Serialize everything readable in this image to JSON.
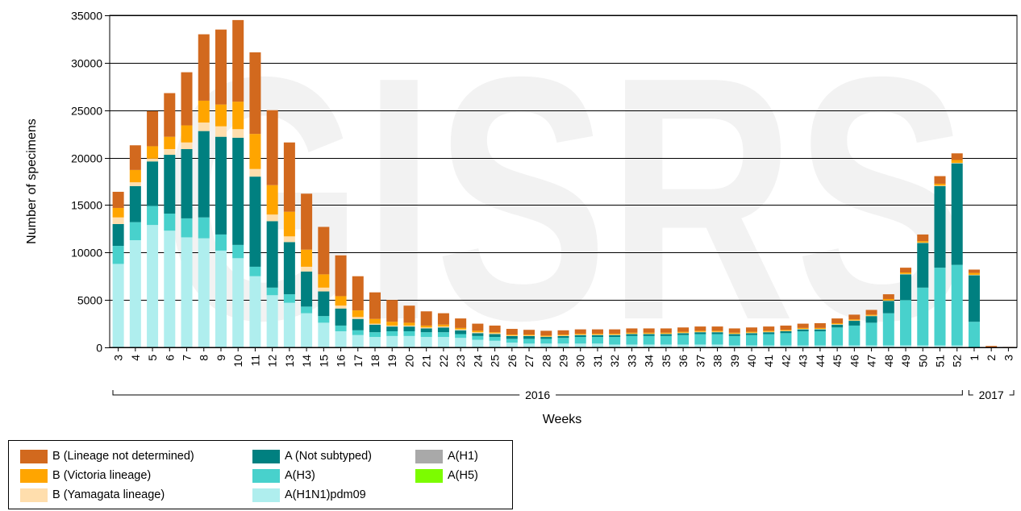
{
  "colors": {
    "b_lnd": "#d2691e",
    "b_vic": "#ffa500",
    "b_yam": "#ffdead",
    "a_ns": "#008080",
    "a_h3": "#48d1cc",
    "a_h1n1": "#afeeee",
    "a_h1": "#a9a9a9",
    "a_h5": "#7cfc00",
    "grid": "#000000"
  },
  "chart_data": {
    "type": "bar",
    "stacked": true,
    "title": "",
    "xlabel": "Weeks",
    "ylabel": "Number of specimens",
    "ylim": [
      0,
      35000
    ],
    "yticks": [
      0,
      5000,
      10000,
      15000,
      20000,
      25000,
      30000,
      35000
    ],
    "grid": "horizontal",
    "watermark": "GISRS",
    "categories": [
      "3",
      "4",
      "5",
      "6",
      "7",
      "8",
      "9",
      "10",
      "11",
      "12",
      "13",
      "14",
      "15",
      "16",
      "17",
      "18",
      "19",
      "20",
      "21",
      "22",
      "23",
      "24",
      "25",
      "26",
      "27",
      "28",
      "29",
      "30",
      "31",
      "32",
      "33",
      "34",
      "35",
      "36",
      "37",
      "38",
      "39",
      "40",
      "41",
      "42",
      "43",
      "44",
      "45",
      "46",
      "47",
      "48",
      "49",
      "50",
      "51",
      "52",
      "1",
      "2",
      "3"
    ],
    "year_groups": [
      {
        "label": "2016",
        "start": 0,
        "end": 49
      },
      {
        "label": "2017",
        "start": 50,
        "end": 52
      }
    ],
    "series": [
      {
        "name": "A(H1N1)pdm09",
        "color_key": "a_h1n1",
        "values": [
          8800,
          11300,
          12900,
          12300,
          11600,
          11500,
          10200,
          9400,
          7500,
          5500,
          4700,
          3600,
          2600,
          1700,
          1300,
          1100,
          1200,
          1200,
          1100,
          1100,
          1000,
          800,
          700,
          500,
          400,
          400,
          400,
          400,
          400,
          300,
          300,
          300,
          300,
          300,
          300,
          300,
          200,
          200,
          200,
          200,
          200,
          200,
          200,
          200,
          200,
          200,
          200,
          200,
          200,
          200,
          0,
          0,
          0
        ]
      },
      {
        "name": "A(H3)",
        "color_key": "a_h3",
        "values": [
          1900,
          1900,
          2000,
          1800,
          2000,
          2200,
          1700,
          1400,
          1000,
          800,
          900,
          700,
          700,
          600,
          500,
          500,
          500,
          500,
          500,
          500,
          400,
          400,
          400,
          400,
          500,
          500,
          600,
          700,
          700,
          800,
          900,
          900,
          900,
          1000,
          1100,
          1100,
          1000,
          1100,
          1200,
          1300,
          1500,
          1500,
          1900,
          2100,
          2400,
          3400,
          4800,
          6100,
          8200,
          8500,
          2700,
          0,
          0
        ]
      },
      {
        "name": "A(Not subtyped)",
        "color_key": "a_ns",
        "values": [
          2300,
          3800,
          4700,
          6200,
          7300,
          9100,
          10300,
          11300,
          9500,
          7000,
          5500,
          3700,
          2600,
          1800,
          1200,
          800,
          500,
          500,
          400,
          500,
          400,
          300,
          300,
          300,
          300,
          200,
          200,
          200,
          200,
          200,
          200,
          200,
          200,
          200,
          200,
          200,
          200,
          200,
          200,
          200,
          200,
          200,
          300,
          500,
          700,
          1300,
          2700,
          4700,
          8600,
          10700,
          4900,
          0,
          0
        ]
      },
      {
        "name": "B (Yamagata lineage)",
        "color_key": "b_yam",
        "values": [
          700,
          400,
          300,
          600,
          700,
          900,
          1100,
          900,
          800,
          700,
          600,
          500,
          400,
          300,
          200,
          100,
          100,
          100,
          100,
          100,
          100,
          100,
          100,
          50,
          50,
          50,
          50,
          50,
          50,
          50,
          50,
          50,
          50,
          50,
          50,
          50,
          50,
          50,
          50,
          50,
          50,
          50,
          50,
          50,
          50,
          50,
          50,
          50,
          50,
          50,
          50,
          0,
          0
        ]
      },
      {
        "name": "B (Victoria lineage)",
        "color_key": "b_vic",
        "values": [
          1000,
          1300,
          1300,
          1300,
          1800,
          2300,
          2300,
          2900,
          3700,
          3100,
          2600,
          1800,
          1400,
          1000,
          700,
          500,
          400,
          300,
          200,
          200,
          150,
          150,
          100,
          100,
          100,
          100,
          100,
          100,
          100,
          100,
          100,
          100,
          100,
          100,
          100,
          100,
          100,
          100,
          100,
          100,
          100,
          100,
          100,
          100,
          100,
          150,
          150,
          150,
          200,
          300,
          200,
          0,
          0
        ]
      },
      {
        "name": "B (Lineage not determined)",
        "color_key": "b_lnd",
        "values": [
          1700,
          2600,
          3700,
          4600,
          5600,
          7000,
          7900,
          8600,
          8600,
          7900,
          7300,
          5900,
          5000,
          4300,
          3600,
          2800,
          2300,
          1800,
          1500,
          1200,
          1000,
          750,
          700,
          600,
          500,
          500,
          450,
          450,
          450,
          450,
          450,
          450,
          450,
          450,
          450,
          450,
          450,
          450,
          450,
          450,
          450,
          500,
          500,
          500,
          500,
          500,
          500,
          700,
          800,
          700,
          350,
          150,
          50
        ]
      },
      {
        "name": "A(H1)",
        "color_key": "a_h1",
        "values": [
          0,
          0,
          0,
          0,
          0,
          0,
          0,
          0,
          0,
          0,
          0,
          0,
          0,
          0,
          0,
          0,
          0,
          0,
          0,
          0,
          0,
          0,
          0,
          0,
          0,
          0,
          0,
          0,
          0,
          0,
          0,
          0,
          0,
          0,
          0,
          0,
          0,
          0,
          0,
          0,
          0,
          0,
          0,
          0,
          0,
          0,
          0,
          0,
          0,
          0,
          0,
          0,
          0
        ]
      },
      {
        "name": "A(H5)",
        "color_key": "a_h5",
        "values": [
          0,
          0,
          0,
          0,
          0,
          0,
          0,
          0,
          0,
          0,
          0,
          0,
          0,
          0,
          0,
          0,
          0,
          0,
          0,
          0,
          0,
          0,
          0,
          0,
          0,
          0,
          0,
          0,
          0,
          0,
          0,
          0,
          0,
          0,
          0,
          0,
          0,
          0,
          0,
          0,
          0,
          0,
          0,
          0,
          0,
          0,
          0,
          0,
          0,
          0,
          0,
          0,
          0
        ]
      }
    ]
  },
  "legend": [
    {
      "label": "B (Lineage not determined)",
      "color_key": "b_lnd"
    },
    {
      "label": "B (Victoria lineage)",
      "color_key": "b_vic"
    },
    {
      "label": "B (Yamagata lineage)",
      "color_key": "b_yam"
    },
    {
      "label": "A (Not subtyped)",
      "color_key": "a_ns"
    },
    {
      "label": "A(H3)",
      "color_key": "a_h3"
    },
    {
      "label": "A(H1N1)pdm09",
      "color_key": "a_h1n1"
    },
    {
      "label": "A(H1)",
      "color_key": "a_h1"
    },
    {
      "label": "A(H5)",
      "color_key": "a_h5"
    }
  ]
}
